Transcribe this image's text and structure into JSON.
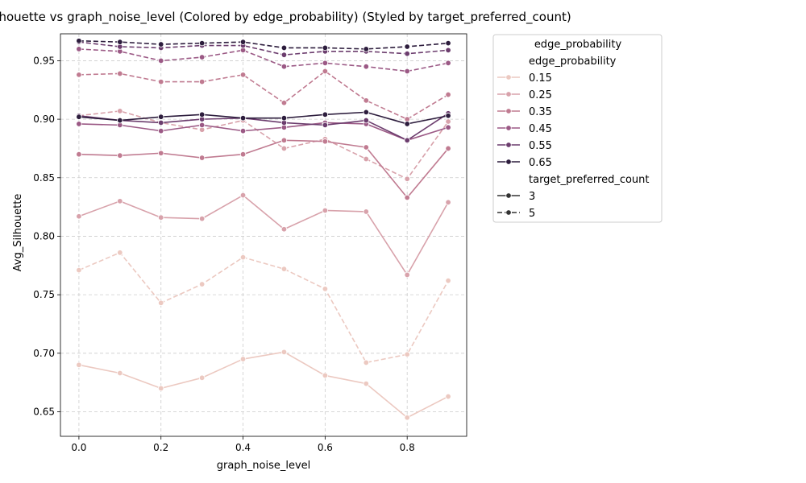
{
  "chart_data": {
    "type": "line",
    "title": "Avg_Silhouette vs graph_noise_level (Colored by edge_probability) (Styled by target_preferred_count)",
    "xlabel": "graph_noise_level",
    "ylabel": "Avg_Silhouette",
    "xlim": [
      -0.045,
      0.945
    ],
    "ylim": [
      0.629,
      0.973
    ],
    "xticks": [
      0.0,
      0.2,
      0.4,
      0.6,
      0.8
    ],
    "xtick_labels": [
      "0.0",
      "0.2",
      "0.4",
      "0.6",
      "0.8"
    ],
    "yticks": [
      0.65,
      0.7,
      0.75,
      0.8,
      0.85,
      0.9,
      0.95
    ],
    "ytick_labels": [
      "0.65",
      "0.70",
      "0.75",
      "0.80",
      "0.85",
      "0.90",
      "0.95"
    ],
    "grid": true,
    "x": [
      0.0,
      0.1,
      0.2,
      0.3,
      0.4,
      0.5,
      0.6,
      0.7,
      0.8,
      0.9
    ],
    "legend": {
      "placement": "outside-right",
      "title": "edge_probability",
      "hue_title": "edge_probability",
      "style_title": "target_preferred_count",
      "hue_entries": [
        {
          "label": "0.15",
          "color": "#ecc9c1"
        },
        {
          "label": "0.25",
          "color": "#d8a2ab"
        },
        {
          "label": "0.35",
          "color": "#c07b91"
        },
        {
          "label": "0.45",
          "color": "#9b5985"
        },
        {
          "label": "0.55",
          "color": "#6c3d6e"
        },
        {
          "label": "0.65",
          "color": "#2d1d3d"
        }
      ],
      "style_entries": [
        {
          "label": "3",
          "dash": "solid"
        },
        {
          "label": "5",
          "dash": "dashed"
        }
      ]
    },
    "series": [
      {
        "edge_probability": "0.15",
        "target_preferred_count": "3",
        "color": "#ecc9c1",
        "dash": "solid",
        "values": [
          0.69,
          0.683,
          0.67,
          0.679,
          0.695,
          0.701,
          0.681,
          0.674,
          0.645,
          0.663
        ]
      },
      {
        "edge_probability": "0.15",
        "target_preferred_count": "5",
        "color": "#ecc9c1",
        "dash": "dashed",
        "values": [
          0.771,
          0.786,
          0.743,
          0.759,
          0.782,
          0.772,
          0.755,
          0.692,
          0.699,
          0.762
        ]
      },
      {
        "edge_probability": "0.25",
        "target_preferred_count": "3",
        "color": "#d8a2ab",
        "dash": "solid",
        "values": [
          0.817,
          0.83,
          0.816,
          0.815,
          0.835,
          0.806,
          0.822,
          0.821,
          0.767,
          0.829
        ]
      },
      {
        "edge_probability": "0.25",
        "target_preferred_count": "5",
        "color": "#d8a2ab",
        "dash": "dashed",
        "values": [
          0.903,
          0.907,
          0.897,
          0.891,
          0.899,
          0.875,
          0.883,
          0.866,
          0.849,
          0.898
        ]
      },
      {
        "edge_probability": "0.35",
        "target_preferred_count": "3",
        "color": "#c07b91",
        "dash": "solid",
        "values": [
          0.87,
          0.869,
          0.871,
          0.867,
          0.87,
          0.882,
          0.881,
          0.876,
          0.833,
          0.875
        ]
      },
      {
        "edge_probability": "0.35",
        "target_preferred_count": "5",
        "color": "#c07b91",
        "dash": "dashed",
        "values": [
          0.938,
          0.939,
          0.932,
          0.932,
          0.938,
          0.914,
          0.941,
          0.916,
          0.9,
          0.921
        ]
      },
      {
        "edge_probability": "0.45",
        "target_preferred_count": "3",
        "color": "#9b5985",
        "dash": "solid",
        "values": [
          0.896,
          0.895,
          0.89,
          0.895,
          0.89,
          0.893,
          0.897,
          0.896,
          0.882,
          0.893
        ]
      },
      {
        "edge_probability": "0.45",
        "target_preferred_count": "5",
        "color": "#9b5985",
        "dash": "dashed",
        "values": [
          0.96,
          0.958,
          0.95,
          0.953,
          0.959,
          0.945,
          0.948,
          0.945,
          0.941,
          0.948
        ]
      },
      {
        "edge_probability": "0.55",
        "target_preferred_count": "3",
        "color": "#6c3d6e",
        "dash": "solid",
        "values": [
          0.903,
          0.899,
          0.897,
          0.9,
          0.901,
          0.897,
          0.895,
          0.899,
          0.882,
          0.905
        ]
      },
      {
        "edge_probability": "0.55",
        "target_preferred_count": "5",
        "color": "#6c3d6e",
        "dash": "dashed",
        "values": [
          0.966,
          0.962,
          0.961,
          0.963,
          0.963,
          0.955,
          0.958,
          0.958,
          0.956,
          0.959
        ]
      },
      {
        "edge_probability": "0.65",
        "target_preferred_count": "3",
        "color": "#2d1d3d",
        "dash": "solid",
        "values": [
          0.902,
          0.899,
          0.902,
          0.904,
          0.901,
          0.901,
          0.904,
          0.906,
          0.896,
          0.903
        ]
      },
      {
        "edge_probability": "0.65",
        "target_preferred_count": "5",
        "color": "#2d1d3d",
        "dash": "dashed",
        "values": [
          0.967,
          0.966,
          0.964,
          0.965,
          0.966,
          0.961,
          0.961,
          0.96,
          0.962,
          0.965
        ]
      }
    ]
  }
}
